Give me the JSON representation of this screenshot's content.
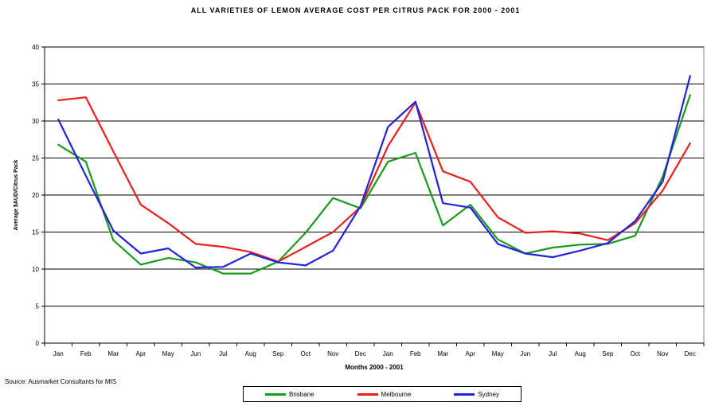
{
  "chart_data": {
    "type": "line",
    "title": "ALL VARIETIES OF LEMON AVERAGE COST PER CITRUS PACK FOR 2000 - 2001",
    "xlabel": "Months 2000 - 2001",
    "ylabel": "Average $AUD/Citrus Pack",
    "ylim": [
      0,
      40
    ],
    "yticks": [
      0,
      5,
      10,
      15,
      20,
      25,
      30,
      35,
      40
    ],
    "grid": true,
    "legend_position": "bottom",
    "categories": [
      "Jan",
      "Feb",
      "Mar",
      "Apr",
      "May",
      "Jun",
      "Jul",
      "Aug",
      "Sep",
      "Oct",
      "Nov",
      "Dec",
      "Jan",
      "Feb",
      "Mar",
      "Apr",
      "May",
      "Jun",
      "Jul",
      "Aug",
      "Sep",
      "Oct",
      "Nov",
      "Dec"
    ],
    "series": [
      {
        "name": "Brisbane",
        "color": "#1a9a1a",
        "values": [
          26.8,
          24.5,
          13.9,
          10.6,
          11.5,
          10.9,
          9.4,
          9.4,
          11.0,
          14.9,
          19.6,
          18.2,
          24.5,
          25.7,
          15.9,
          18.7,
          14.0,
          12.1,
          12.9,
          13.3,
          13.4,
          14.5,
          22.5,
          33.5
        ]
      },
      {
        "name": "Melbourne",
        "color": "#e8201f",
        "values": [
          32.8,
          33.2,
          25.9,
          18.7,
          16.2,
          13.4,
          13.0,
          12.3,
          11.0,
          13.0,
          15.0,
          18.4,
          26.6,
          32.5,
          23.2,
          21.8,
          17.0,
          14.9,
          15.1,
          14.8,
          13.9,
          16.2,
          20.6,
          27.0
        ]
      },
      {
        "name": "Sydney",
        "color": "#2222dd",
        "values": [
          30.2,
          22.6,
          15.2,
          12.1,
          12.8,
          10.2,
          10.3,
          12.1,
          10.9,
          10.5,
          12.5,
          18.5,
          29.2,
          32.6,
          18.9,
          18.3,
          13.4,
          12.1,
          11.6,
          12.5,
          13.5,
          16.5,
          21.8,
          36.1
        ]
      }
    ]
  },
  "source_note": "Source: Ausmarket Consultants for MIS"
}
